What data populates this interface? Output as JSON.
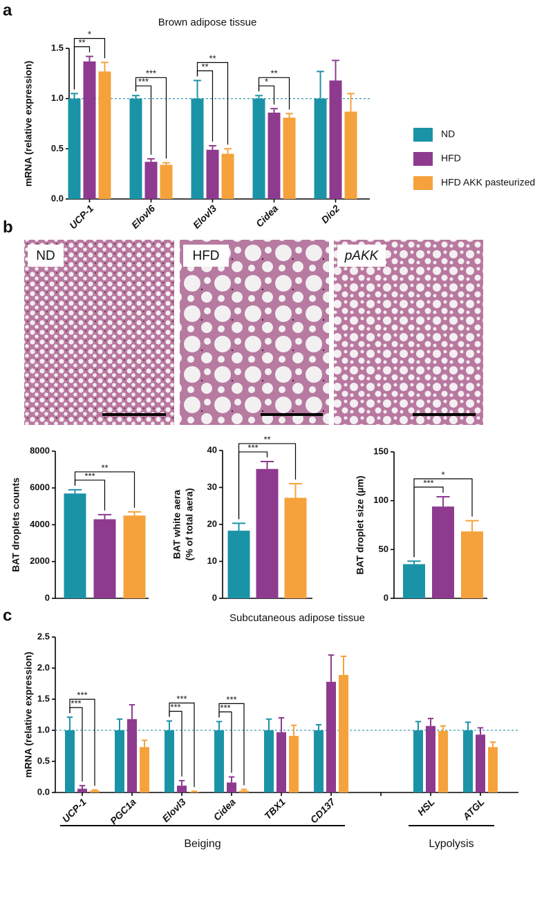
{
  "micrograph_labels": [
    "ND",
    "HFD",
    "pAKK"
  ],
  "chart_data": [
    {
      "type": "bar",
      "panel": "a",
      "title": "Brown adipose tissue",
      "ylabel": "mRNA (relative expression)",
      "categories": [
        "UCP-1",
        "Elovl6",
        "Elovl3",
        "Cidea",
        "Dio2"
      ],
      "series": [
        {
          "name": "ND",
          "color": "#1b93a7",
          "values": [
            1.0,
            1.0,
            1.0,
            1.0,
            1.0
          ],
          "errors": [
            0.05,
            0.03,
            0.18,
            0.03,
            0.27
          ]
        },
        {
          "name": "HFD",
          "color": "#8e3a8f",
          "values": [
            1.37,
            0.37,
            0.49,
            0.86,
            1.18
          ],
          "errors": [
            0.05,
            0.03,
            0.04,
            0.04,
            0.2
          ]
        },
        {
          "name": "HFD AKK pasteurized",
          "color": "#f5a23c",
          "values": [
            1.27,
            0.34,
            0.45,
            0.81,
            0.87
          ],
          "errors": [
            0.09,
            0.02,
            0.05,
            0.04,
            0.18
          ]
        }
      ],
      "ylim": [
        0,
        1.5
      ],
      "yticks": [
        {
          "value": 0,
          "label": "0.0"
        },
        0.5,
        {
          "value": 1,
          "label": "1.0"
        },
        1.5
      ],
      "reference_line": 1,
      "legend": "right",
      "brackets": [
        {
          "category": 0,
          "from": 0,
          "to": 1,
          "label": "**"
        },
        {
          "category": 0,
          "from": 0,
          "to": 2,
          "label": "*"
        },
        {
          "category": 1,
          "from": 0,
          "to": 1,
          "label": "***"
        },
        {
          "category": 1,
          "from": 0,
          "to": 2,
          "label": "***"
        },
        {
          "category": 2,
          "from": 0,
          "to": 1,
          "label": "**"
        },
        {
          "category": 2,
          "from": 0,
          "to": 2,
          "label": "**"
        },
        {
          "category": 3,
          "from": 0,
          "to": 1,
          "label": "*"
        },
        {
          "category": 3,
          "from": 0,
          "to": 2,
          "label": "**"
        }
      ]
    },
    {
      "type": "bar",
      "panel": "b",
      "ylabel": "BAT droplets counts",
      "values": [
        5700,
        4300,
        4500
      ],
      "errors": [
        200,
        250,
        200
      ],
      "colors": [
        "#1b93a7",
        "#8e3a8f",
        "#f5a23c"
      ],
      "ylim": [
        0,
        8000
      ],
      "yticks": [
        0,
        2000,
        4000,
        6000,
        8000
      ],
      "brackets": [
        {
          "from": 0,
          "to": 1,
          "label": "***"
        },
        {
          "from": 0,
          "to": 2,
          "label": "**"
        }
      ]
    },
    {
      "type": "bar",
      "ylabel": [
        "BAT white aera",
        "(% of total aera)"
      ],
      "values": [
        18.3,
        35,
        27.2
      ],
      "errors": [
        2,
        2,
        3.8
      ],
      "colors": [
        "#1b93a7",
        "#8e3a8f",
        "#f5a23c"
      ],
      "ylim": [
        0,
        40
      ],
      "yticks": [
        0,
        10,
        20,
        30,
        40
      ],
      "brackets": [
        {
          "from": 0,
          "to": 1,
          "label": "***"
        },
        {
          "from": 0,
          "to": 2,
          "label": "**"
        }
      ]
    },
    {
      "type": "bar",
      "ylabel": "BAT droplet size (µm)",
      "values": [
        35,
        94,
        68.5
      ],
      "errors": [
        3,
        10,
        11
      ],
      "colors": [
        "#1b93a7",
        "#8e3a8f",
        "#f5a23c"
      ],
      "ylim": [
        0,
        150
      ],
      "yticks": [
        0,
        50,
        100,
        150
      ],
      "brackets": [
        {
          "from": 0,
          "to": 1,
          "label": "***"
        },
        {
          "from": 0,
          "to": 2,
          "label": "*"
        }
      ]
    },
    {
      "type": "bar",
      "panel": "c",
      "title": "Subcutaneous adipose tissue",
      "ylabel": "mRNA (relative expression)",
      "categories": [
        "UCP-1",
        "PGC1a",
        "Elovl3",
        "Cidea",
        "TBX1",
        "CD137",
        null,
        "HSL",
        "ATGL"
      ],
      "series": [
        {
          "color": "#1b93a7",
          "values": [
            1.0,
            1.0,
            1.0,
            1.0,
            1.0,
            1.0,
            null,
            1.0,
            1.0
          ],
          "errors": [
            0.21,
            0.18,
            0.15,
            0.14,
            0.18,
            0.09,
            null,
            0.14,
            0.13
          ]
        },
        {
          "color": "#8e3a8f",
          "values": [
            0.06,
            1.18,
            0.11,
            0.16,
            0.97,
            1.78,
            null,
            1.07,
            0.93
          ],
          "errors": [
            0.05,
            0.23,
            0.08,
            0.09,
            0.23,
            0.43,
            null,
            0.12,
            0.11
          ]
        },
        {
          "color": "#f5a23c",
          "values": [
            0.03,
            0.73,
            0.01,
            0.03,
            0.91,
            1.89,
            null,
            0.99,
            0.73
          ],
          "errors": [
            0.01,
            0.11,
            0.01,
            0.02,
            0.17,
            0.3,
            null,
            0.08,
            0.08
          ]
        }
      ],
      "ylim": [
        0,
        2.5
      ],
      "yticks": [
        {
          "value": 0,
          "label": "0.0"
        },
        0.5,
        {
          "value": 1,
          "label": "1.0"
        },
        1.5,
        {
          "value": 2,
          "label": "2.0"
        },
        2.5
      ],
      "reference_line": 1,
      "brackets": [
        {
          "category": 0,
          "from": 0,
          "to": 1,
          "label": "***"
        },
        {
          "category": 0,
          "from": 0,
          "to": 2,
          "label": "***"
        },
        {
          "category": 2,
          "from": 0,
          "to": 1,
          "label": "***"
        },
        {
          "category": 2,
          "from": 0,
          "to": 2,
          "label": "***"
        },
        {
          "category": 3,
          "from": 0,
          "to": 1,
          "label": "***"
        },
        {
          "category": 3,
          "from": 0,
          "to": 2,
          "label": "***"
        }
      ],
      "groups": [
        {
          "label": "Beiging",
          "from": 0,
          "to": 5
        },
        {
          "label": "Lypolysis",
          "from": 7,
          "to": 8
        }
      ]
    }
  ]
}
